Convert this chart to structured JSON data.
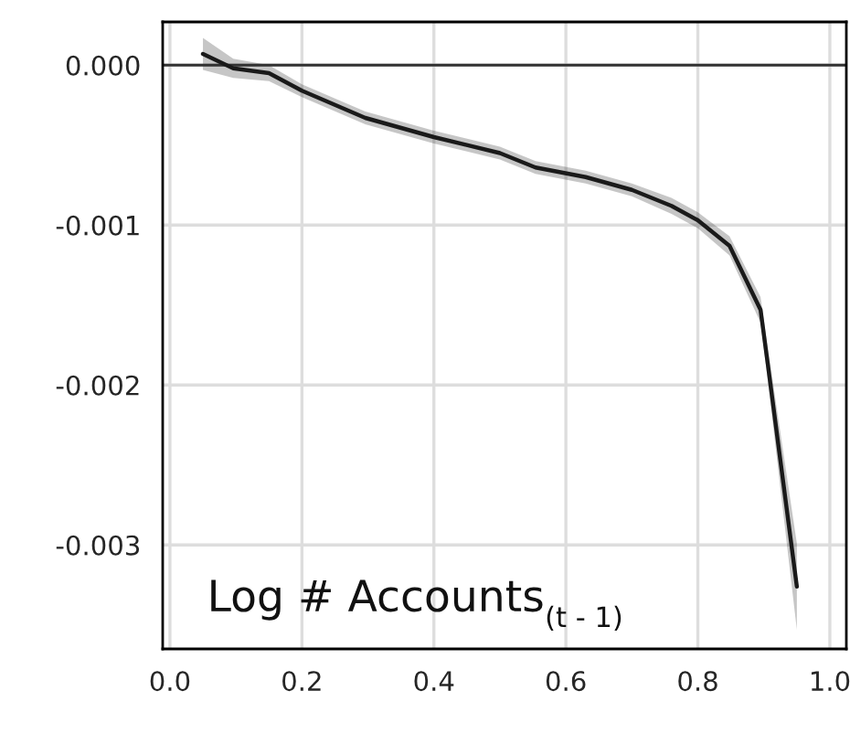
{
  "chart_data": {
    "type": "line",
    "x": [
      0.05,
      0.096,
      0.15,
      0.2,
      0.296,
      0.4,
      0.5,
      0.554,
      0.63,
      0.7,
      0.76,
      0.8,
      0.848,
      0.895,
      0.906,
      0.95
    ],
    "series": [
      {
        "color": "#1a1a1a",
        "values": [
          7e-05,
          -2e-05,
          -5e-05,
          -0.00016,
          -0.00033,
          -0.00045,
          -0.00055,
          -0.00064,
          -0.0007,
          -0.00078,
          -0.00088,
          -0.00097,
          -0.00113,
          -0.00153,
          -0.00187,
          -0.00326
        ],
        "lower": [
          -3e-05,
          -8e-05,
          -0.0001,
          -0.0002,
          -0.00037,
          -0.00049,
          -0.00059,
          -0.00068,
          -0.00074,
          -0.00082,
          -0.00093,
          -0.00102,
          -0.00119,
          -0.00161,
          -0.00197,
          -0.00353
        ],
        "upper": [
          0.00017,
          4e-05,
          0.0,
          -0.00012,
          -0.00029,
          -0.00041,
          -0.00051,
          -0.0006,
          -0.00066,
          -0.00074,
          -0.00083,
          -0.00092,
          -0.00107,
          -0.00145,
          -0.00177,
          -0.00299
        ]
      }
    ],
    "xlim": [
      -0.011,
      1.025
    ],
    "ylim": [
      -0.00365,
      0.00027
    ],
    "xticks": [
      {
        "value": 0.0,
        "label": "0.0"
      },
      {
        "value": 0.2,
        "label": "0.2"
      },
      {
        "value": 0.4,
        "label": "0.4"
      },
      {
        "value": 0.6,
        "label": "0.6"
      },
      {
        "value": 0.8,
        "label": "0.8"
      },
      {
        "value": 1.0,
        "label": "1.0"
      }
    ],
    "yticks": [
      {
        "value": 0.0,
        "label": "0.000"
      },
      {
        "value": -0.001,
        "label": "-0.001"
      },
      {
        "value": -0.002,
        "label": "-0.002"
      },
      {
        "value": -0.003,
        "label": "-0.003"
      }
    ],
    "ref_lines": [
      {
        "axis": "y",
        "value": 0,
        "color": "#333333"
      }
    ],
    "annotations": [
      "Log # Accounts$_{(t - 1)}$"
    ],
    "grid": true,
    "line_style": "solid"
  }
}
